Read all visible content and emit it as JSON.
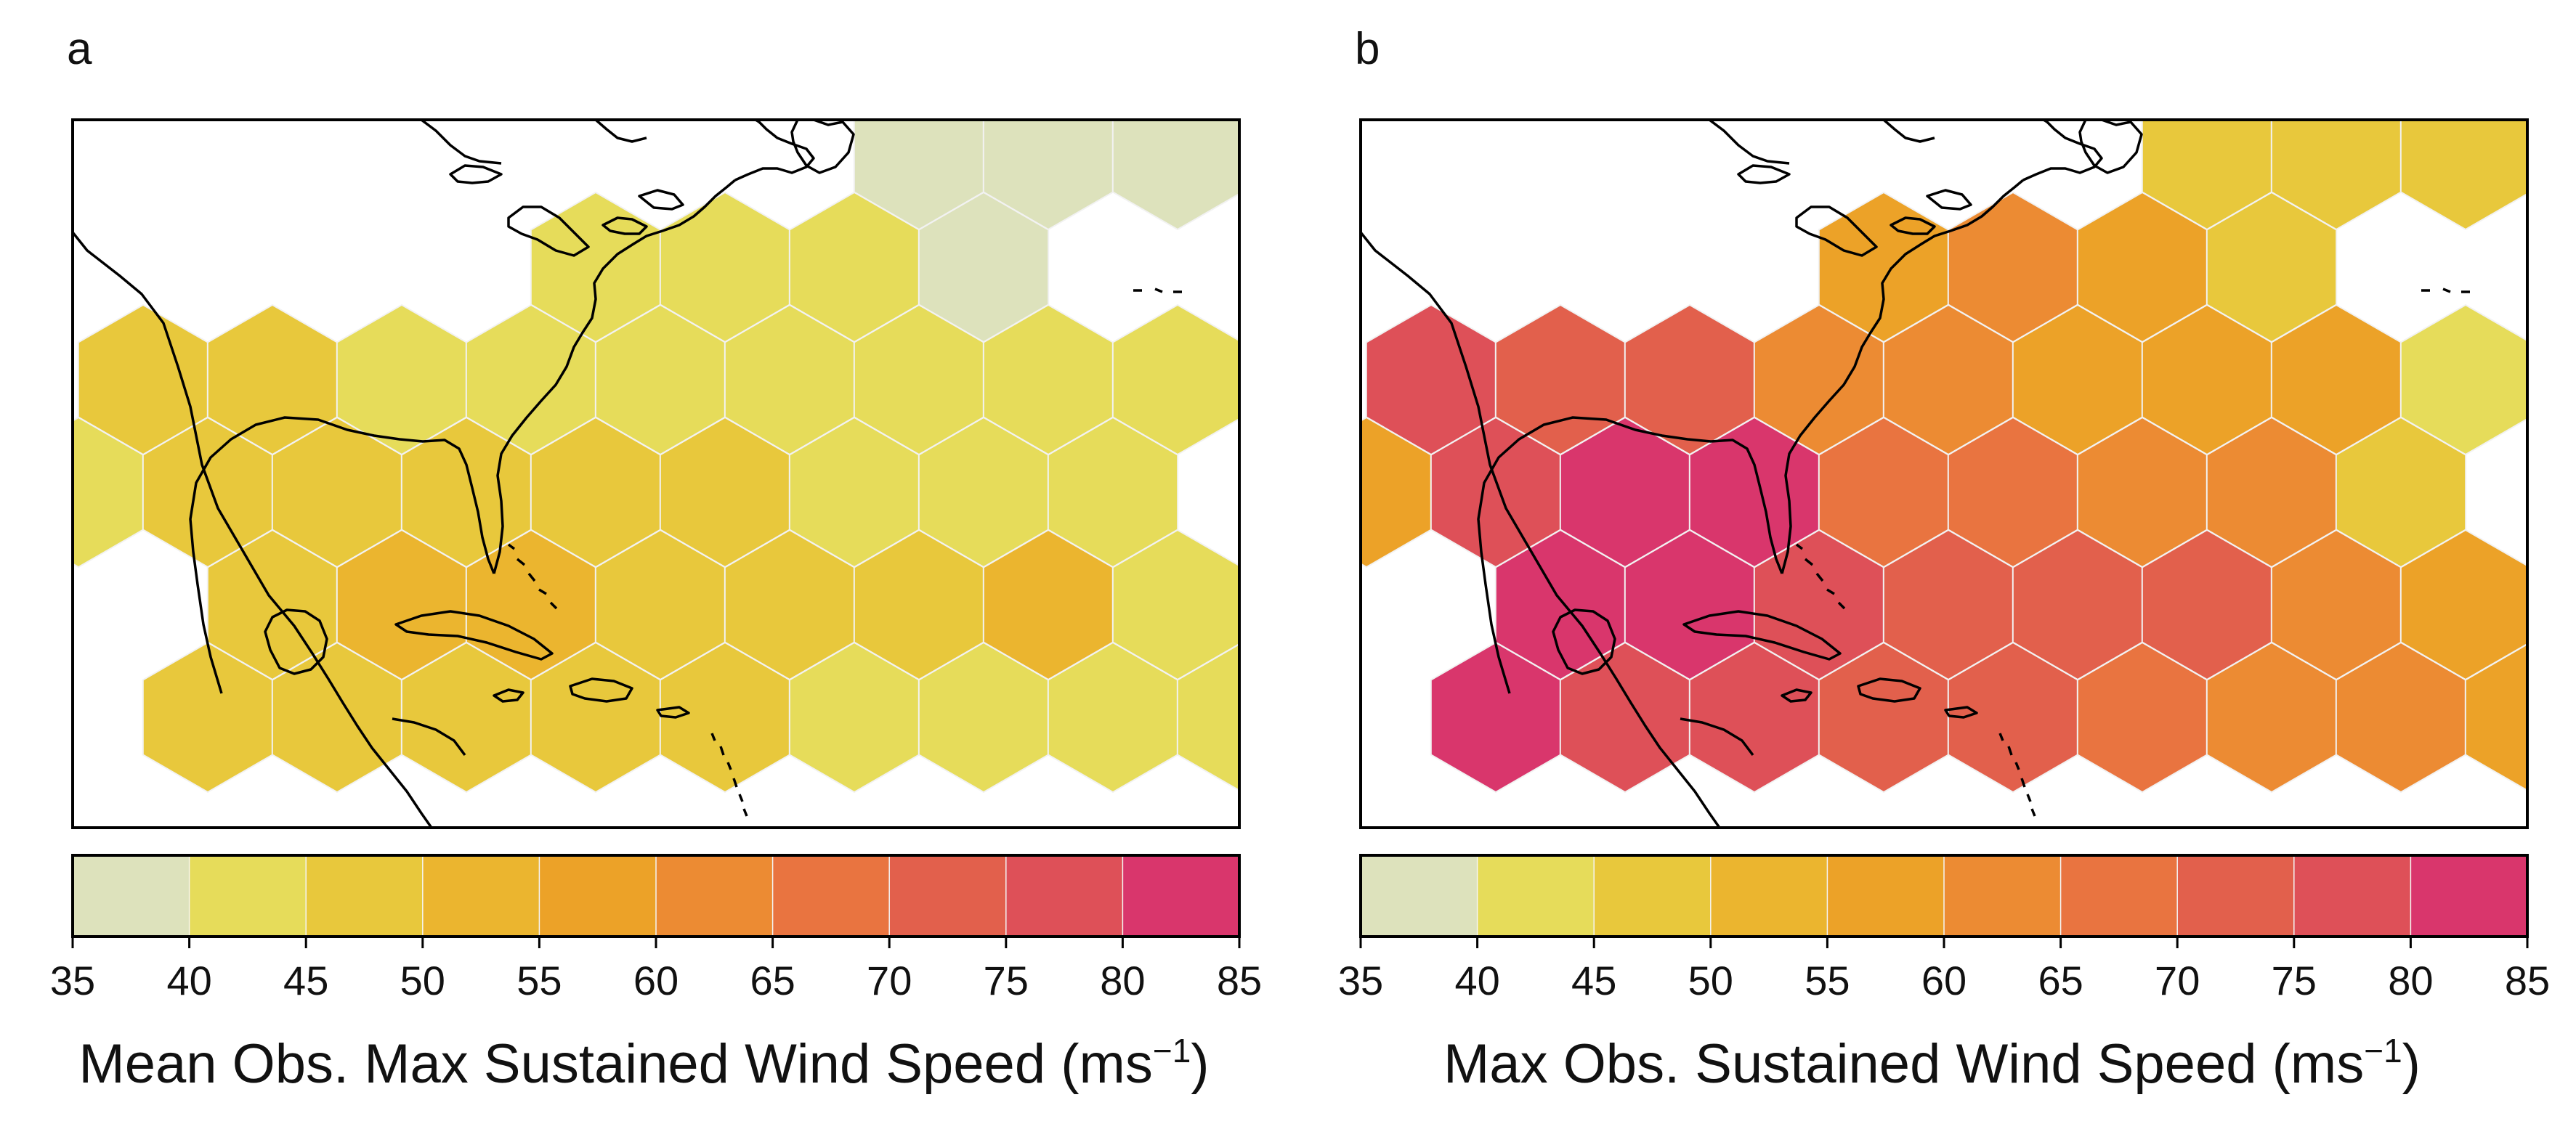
{
  "panels": [
    {
      "letter": "a",
      "title_main": "Mean Obs. Max Sustained Wind Speed (ms",
      "title_sup": "−1",
      "title_close": ")",
      "hex_bins": [
        [
          [
            0,
            6
          ],
          [
            35,
            40
          ]
        ],
        [
          [
            0,
            7
          ],
          [
            35,
            40
          ]
        ],
        [
          [
            0,
            8
          ],
          [
            35,
            40
          ]
        ],
        [
          [
            1,
            4
          ],
          [
            40,
            45
          ]
        ],
        [
          [
            1,
            5
          ],
          [
            40,
            45
          ]
        ],
        [
          [
            1,
            6
          ],
          [
            40,
            45
          ]
        ],
        [
          [
            1,
            7
          ],
          [
            35,
            40
          ]
        ],
        [
          [
            2,
            0
          ],
          [
            45,
            50
          ]
        ],
        [
          [
            2,
            1
          ],
          [
            45,
            50
          ]
        ],
        [
          [
            2,
            2
          ],
          [
            40,
            45
          ]
        ],
        [
          [
            2,
            3
          ],
          [
            40,
            45
          ]
        ],
        [
          [
            2,
            4
          ],
          [
            40,
            45
          ]
        ],
        [
          [
            2,
            5
          ],
          [
            40,
            45
          ]
        ],
        [
          [
            2,
            6
          ],
          [
            40,
            45
          ]
        ],
        [
          [
            2,
            7
          ],
          [
            40,
            45
          ]
        ],
        [
          [
            2,
            8
          ],
          [
            40,
            45
          ]
        ],
        [
          [
            3,
            0
          ],
          [
            40,
            45
          ]
        ],
        [
          [
            3,
            1
          ],
          [
            45,
            50
          ]
        ],
        [
          [
            3,
            2
          ],
          [
            45,
            50
          ]
        ],
        [
          [
            3,
            3
          ],
          [
            45,
            50
          ]
        ],
        [
          [
            3,
            4
          ],
          [
            45,
            50
          ]
        ],
        [
          [
            3,
            5
          ],
          [
            45,
            50
          ]
        ],
        [
          [
            3,
            6
          ],
          [
            40,
            45
          ]
        ],
        [
          [
            3,
            7
          ],
          [
            40,
            45
          ]
        ],
        [
          [
            3,
            8
          ],
          [
            40,
            45
          ]
        ],
        [
          [
            4,
            1
          ],
          [
            45,
            50
          ]
        ],
        [
          [
            4,
            2
          ],
          [
            50,
            55
          ]
        ],
        [
          [
            4,
            3
          ],
          [
            50,
            55
          ]
        ],
        [
          [
            4,
            4
          ],
          [
            45,
            50
          ]
        ],
        [
          [
            4,
            5
          ],
          [
            45,
            50
          ]
        ],
        [
          [
            4,
            6
          ],
          [
            45,
            50
          ]
        ],
        [
          [
            4,
            7
          ],
          [
            50,
            55
          ]
        ],
        [
          [
            4,
            8
          ],
          [
            40,
            45
          ]
        ],
        [
          [
            5,
            1
          ],
          [
            45,
            50
          ]
        ],
        [
          [
            5,
            2
          ],
          [
            45,
            50
          ]
        ],
        [
          [
            5,
            3
          ],
          [
            45,
            50
          ]
        ],
        [
          [
            5,
            4
          ],
          [
            45,
            50
          ]
        ],
        [
          [
            5,
            5
          ],
          [
            45,
            50
          ]
        ],
        [
          [
            5,
            6
          ],
          [
            40,
            45
          ]
        ],
        [
          [
            5,
            7
          ],
          [
            40,
            45
          ]
        ],
        [
          [
            5,
            8
          ],
          [
            40,
            45
          ]
        ],
        [
          [
            5,
            9
          ],
          [
            40,
            45
          ]
        ]
      ],
      "colorbar_ticks": [
        "35",
        "40",
        "45",
        "50",
        "55",
        "60",
        "65",
        "70",
        "75",
        "80",
        "85"
      ]
    },
    {
      "letter": "b",
      "title_main": "Max Obs. Sustained Wind Speed (ms",
      "title_sup": "−1",
      "title_close": ")",
      "hex_bins": [
        [
          [
            0,
            6
          ],
          [
            45,
            50
          ]
        ],
        [
          [
            0,
            7
          ],
          [
            45,
            50
          ]
        ],
        [
          [
            0,
            8
          ],
          [
            45,
            50
          ]
        ],
        [
          [
            1,
            4
          ],
          [
            55,
            60
          ]
        ],
        [
          [
            1,
            5
          ],
          [
            60,
            65
          ]
        ],
        [
          [
            1,
            6
          ],
          [
            55,
            60
          ]
        ],
        [
          [
            1,
            7
          ],
          [
            45,
            50
          ]
        ],
        [
          [
            2,
            0
          ],
          [
            75,
            80
          ]
        ],
        [
          [
            2,
            1
          ],
          [
            70,
            75
          ]
        ],
        [
          [
            2,
            2
          ],
          [
            70,
            75
          ]
        ],
        [
          [
            2,
            3
          ],
          [
            60,
            65
          ]
        ],
        [
          [
            2,
            4
          ],
          [
            60,
            65
          ]
        ],
        [
          [
            2,
            5
          ],
          [
            55,
            60
          ]
        ],
        [
          [
            2,
            6
          ],
          [
            55,
            60
          ]
        ],
        [
          [
            2,
            7
          ],
          [
            55,
            60
          ]
        ],
        [
          [
            2,
            8
          ],
          [
            40,
            45
          ]
        ],
        [
          [
            3,
            0
          ],
          [
            55,
            60
          ]
        ],
        [
          [
            3,
            1
          ],
          [
            75,
            80
          ]
        ],
        [
          [
            3,
            2
          ],
          [
            80,
            85
          ]
        ],
        [
          [
            3,
            3
          ],
          [
            80,
            85
          ]
        ],
        [
          [
            3,
            4
          ],
          [
            65,
            70
          ]
        ],
        [
          [
            3,
            5
          ],
          [
            65,
            70
          ]
        ],
        [
          [
            3,
            6
          ],
          [
            60,
            65
          ]
        ],
        [
          [
            3,
            7
          ],
          [
            60,
            65
          ]
        ],
        [
          [
            3,
            8
          ],
          [
            45,
            50
          ]
        ],
        [
          [
            4,
            1
          ],
          [
            80,
            85
          ]
        ],
        [
          [
            4,
            2
          ],
          [
            80,
            85
          ]
        ],
        [
          [
            4,
            3
          ],
          [
            75,
            80
          ]
        ],
        [
          [
            4,
            4
          ],
          [
            70,
            75
          ]
        ],
        [
          [
            4,
            5
          ],
          [
            70,
            75
          ]
        ],
        [
          [
            4,
            6
          ],
          [
            70,
            75
          ]
        ],
        [
          [
            4,
            7
          ],
          [
            60,
            65
          ]
        ],
        [
          [
            4,
            8
          ],
          [
            55,
            60
          ]
        ],
        [
          [
            5,
            1
          ],
          [
            80,
            85
          ]
        ],
        [
          [
            5,
            2
          ],
          [
            75,
            80
          ]
        ],
        [
          [
            5,
            3
          ],
          [
            75,
            80
          ]
        ],
        [
          [
            5,
            4
          ],
          [
            70,
            75
          ]
        ],
        [
          [
            5,
            5
          ],
          [
            70,
            75
          ]
        ],
        [
          [
            5,
            6
          ],
          [
            65,
            70
          ]
        ],
        [
          [
            5,
            7
          ],
          [
            60,
            65
          ]
        ],
        [
          [
            5,
            8
          ],
          [
            60,
            65
          ]
        ],
        [
          [
            5,
            9
          ],
          [
            55,
            60
          ]
        ]
      ],
      "colorbar_ticks": [
        "35",
        "40",
        "45",
        "50",
        "55",
        "60",
        "65",
        "70",
        "75",
        "80",
        "85"
      ]
    }
  ],
  "colorbar_colors": [
    "#dde2bc",
    "#e6dc5a",
    "#e8c83c",
    "#ebb52f",
    "#eca228",
    "#ec8b33",
    "#e97440",
    "#e2604c",
    "#de5058",
    "#d9366c"
  ],
  "colors": {
    "land_outline": "#000000",
    "hex_edge": "#f2f2f2",
    "frame": "#000000"
  },
  "chart_data": [
    {
      "type": "heatmap",
      "title": "a",
      "colorbar_label": "Mean Obs. Max Sustained Wind Speed (ms−1)",
      "colorbar_range": [
        35,
        85
      ],
      "colorbar_step": 5,
      "bins_note": "hexagonal bins over the North Atlantic; value = colour class (ms−1)"
    },
    {
      "type": "heatmap",
      "title": "b",
      "colorbar_label": "Max Obs. Sustained Wind Speed (ms−1)",
      "colorbar_range": [
        35,
        85
      ],
      "colorbar_step": 5,
      "bins_note": "hexagonal bins over the North Atlantic; value = colour class (ms−1)"
    }
  ]
}
